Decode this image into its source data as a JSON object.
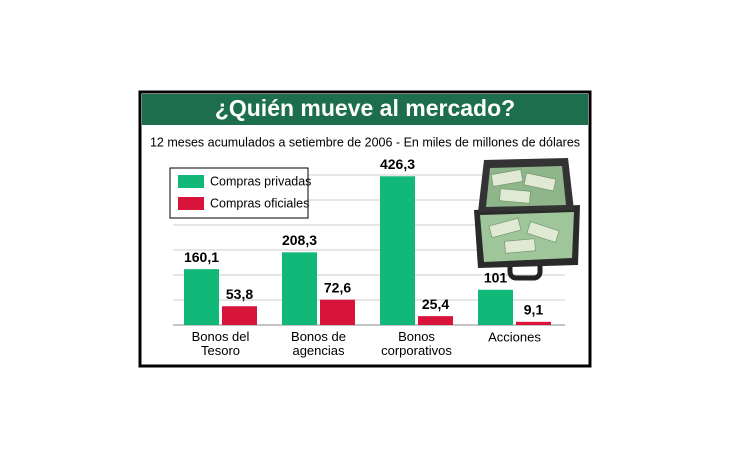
{
  "chart_data": {
    "type": "bar",
    "title": "¿Quién mueve al mercado?",
    "subtitle": "12 meses acumulados a setiembre de 2006 - En miles de millones de dólares",
    "categories": [
      "Bonos del\nTesoro",
      "Bonos de\nagencias",
      "Bonos\ncorporativos",
      "Acciones"
    ],
    "series": [
      {
        "name": "Compras privadas",
        "color": "#12b877",
        "values": [
          160.1,
          208.3,
          426.3,
          101
        ],
        "value_labels": [
          "160,1",
          "208,3",
          "426,3",
          "101"
        ]
      },
      {
        "name": "Compras oficiales",
        "color": "#d8143a",
        "values": [
          53.8,
          72.6,
          25.4,
          9.1
        ],
        "value_labels": [
          "53,8",
          "72,6",
          "25,4",
          "9,1"
        ]
      }
    ],
    "ylim": [
      0,
      430
    ]
  }
}
